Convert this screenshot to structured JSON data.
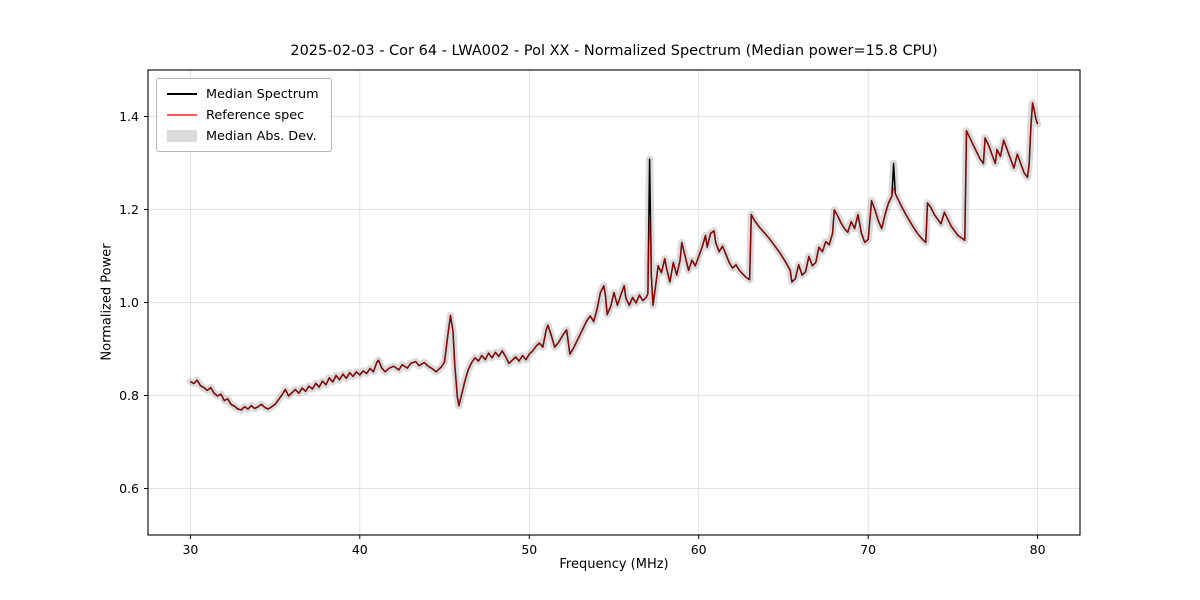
{
  "chart_data": {
    "type": "line",
    "title": "2025-02-03 - Cor 64 - LWA002 - Pol XX - Normalized Spectrum (Median power=15.8 CPU)",
    "xlabel": "Frequency (MHz)",
    "ylabel": "Normalized Power",
    "xlim": [
      27.5,
      82.5
    ],
    "ylim": [
      0.5,
      1.5
    ],
    "xticks": [
      30,
      40,
      50,
      60,
      70,
      80
    ],
    "yticks": [
      0.6,
      0.8,
      1.0,
      1.2,
      1.4
    ],
    "grid": true,
    "grid_color": "#dcdcdc",
    "legend": {
      "position": "upper left",
      "items": [
        {
          "label": "Median Spectrum",
          "swatch": "line",
          "color": "#000000",
          "opacity": 1
        },
        {
          "label": "Reference spec",
          "swatch": "line-thin",
          "color": "#ff0000",
          "opacity": 0.65
        },
        {
          "label": "Median Abs. Dev.",
          "swatch": "patch",
          "color": "#999999",
          "opacity": 0.35
        }
      ]
    },
    "series": [
      {
        "name": "Median Spectrum",
        "color": "#000000",
        "linewidth": 1.5,
        "points": [
          [
            30.0,
            0.83
          ],
          [
            30.2,
            0.826
          ],
          [
            30.4,
            0.833
          ],
          [
            30.6,
            0.821
          ],
          [
            30.8,
            0.817
          ],
          [
            31.0,
            0.811
          ],
          [
            31.2,
            0.817
          ],
          [
            31.4,
            0.805
          ],
          [
            31.6,
            0.799
          ],
          [
            31.8,
            0.803
          ],
          [
            32.0,
            0.789
          ],
          [
            32.2,
            0.793
          ],
          [
            32.4,
            0.781
          ],
          [
            32.6,
            0.777
          ],
          [
            32.8,
            0.771
          ],
          [
            33.0,
            0.769
          ],
          [
            33.2,
            0.776
          ],
          [
            33.4,
            0.771
          ],
          [
            33.6,
            0.778
          ],
          [
            33.8,
            0.772
          ],
          [
            34.0,
            0.776
          ],
          [
            34.2,
            0.781
          ],
          [
            34.4,
            0.774
          ],
          [
            34.6,
            0.771
          ],
          [
            34.8,
            0.776
          ],
          [
            35.0,
            0.781
          ],
          [
            35.2,
            0.791
          ],
          [
            35.4,
            0.801
          ],
          [
            35.6,
            0.813
          ],
          [
            35.8,
            0.799
          ],
          [
            36.0,
            0.806
          ],
          [
            36.2,
            0.813
          ],
          [
            36.4,
            0.805
          ],
          [
            36.6,
            0.816
          ],
          [
            36.8,
            0.809
          ],
          [
            37.0,
            0.82
          ],
          [
            37.2,
            0.814
          ],
          [
            37.4,
            0.826
          ],
          [
            37.6,
            0.818
          ],
          [
            37.8,
            0.831
          ],
          [
            38.0,
            0.823
          ],
          [
            38.2,
            0.838
          ],
          [
            38.4,
            0.829
          ],
          [
            38.6,
            0.843
          ],
          [
            38.8,
            0.834
          ],
          [
            39.0,
            0.846
          ],
          [
            39.2,
            0.837
          ],
          [
            39.4,
            0.849
          ],
          [
            39.6,
            0.841
          ],
          [
            39.8,
            0.851
          ],
          [
            40.0,
            0.844
          ],
          [
            40.2,
            0.853
          ],
          [
            40.4,
            0.847
          ],
          [
            40.6,
            0.858
          ],
          [
            40.8,
            0.851
          ],
          [
            41.0,
            0.871
          ],
          [
            41.1,
            0.876
          ],
          [
            41.3,
            0.859
          ],
          [
            41.5,
            0.851
          ],
          [
            41.7,
            0.858
          ],
          [
            42.0,
            0.863
          ],
          [
            42.3,
            0.855
          ],
          [
            42.5,
            0.866
          ],
          [
            42.8,
            0.859
          ],
          [
            43.0,
            0.869
          ],
          [
            43.3,
            0.873
          ],
          [
            43.5,
            0.864
          ],
          [
            43.8,
            0.871
          ],
          [
            44.0,
            0.864
          ],
          [
            44.3,
            0.857
          ],
          [
            44.5,
            0.851
          ],
          [
            44.8,
            0.861
          ],
          [
            45.0,
            0.872
          ],
          [
            45.2,
            0.931
          ],
          [
            45.35,
            0.972
          ],
          [
            45.5,
            0.938
          ],
          [
            45.6,
            0.868
          ],
          [
            45.75,
            0.798
          ],
          [
            45.85,
            0.778
          ],
          [
            46.0,
            0.801
          ],
          [
            46.2,
            0.831
          ],
          [
            46.4,
            0.856
          ],
          [
            46.6,
            0.871
          ],
          [
            46.8,
            0.881
          ],
          [
            47.0,
            0.874
          ],
          [
            47.2,
            0.886
          ],
          [
            47.4,
            0.877
          ],
          [
            47.6,
            0.891
          ],
          [
            47.8,
            0.881
          ],
          [
            48.0,
            0.893
          ],
          [
            48.2,
            0.884
          ],
          [
            48.4,
            0.896
          ],
          [
            48.6,
            0.884
          ],
          [
            48.8,
            0.869
          ],
          [
            49.0,
            0.876
          ],
          [
            49.2,
            0.883
          ],
          [
            49.4,
            0.874
          ],
          [
            49.6,
            0.886
          ],
          [
            49.8,
            0.877
          ],
          [
            50.0,
            0.889
          ],
          [
            50.2,
            0.896
          ],
          [
            50.4,
            0.906
          ],
          [
            50.6,
            0.913
          ],
          [
            50.8,
            0.904
          ],
          [
            51.0,
            0.941
          ],
          [
            51.1,
            0.951
          ],
          [
            51.3,
            0.929
          ],
          [
            51.5,
            0.904
          ],
          [
            51.7,
            0.913
          ],
          [
            52.0,
            0.931
          ],
          [
            52.2,
            0.941
          ],
          [
            52.4,
            0.889
          ],
          [
            52.6,
            0.901
          ],
          [
            52.8,
            0.916
          ],
          [
            53.0,
            0.931
          ],
          [
            53.2,
            0.946
          ],
          [
            53.4,
            0.961
          ],
          [
            53.6,
            0.971
          ],
          [
            53.8,
            0.959
          ],
          [
            54.0,
            0.986
          ],
          [
            54.2,
            1.021
          ],
          [
            54.4,
            1.036
          ],
          [
            54.5,
            1.014
          ],
          [
            54.6,
            0.974
          ],
          [
            54.8,
            0.991
          ],
          [
            55.0,
            1.021
          ],
          [
            55.2,
            0.994
          ],
          [
            55.4,
            1.016
          ],
          [
            55.6,
            1.036
          ],
          [
            55.7,
            1.009
          ],
          [
            55.9,
            0.994
          ],
          [
            56.1,
            1.011
          ],
          [
            56.3,
            0.999
          ],
          [
            56.5,
            1.016
          ],
          [
            56.7,
            1.004
          ],
          [
            56.9,
            1.011
          ],
          [
            57.0,
            1.019
          ],
          [
            57.1,
            1.308
          ],
          [
            57.2,
            1.058
          ],
          [
            57.3,
            0.994
          ],
          [
            57.5,
            1.049
          ],
          [
            57.6,
            1.079
          ],
          [
            57.8,
            1.064
          ],
          [
            58.0,
            1.094
          ],
          [
            58.1,
            1.074
          ],
          [
            58.3,
            1.044
          ],
          [
            58.5,
            1.086
          ],
          [
            58.7,
            1.059
          ],
          [
            58.9,
            1.091
          ],
          [
            59.0,
            1.129
          ],
          [
            59.2,
            1.099
          ],
          [
            59.4,
            1.069
          ],
          [
            59.6,
            1.091
          ],
          [
            59.8,
            1.079
          ],
          [
            60.0,
            1.099
          ],
          [
            60.2,
            1.119
          ],
          [
            60.4,
            1.144
          ],
          [
            60.5,
            1.119
          ],
          [
            60.7,
            1.149
          ],
          [
            60.9,
            1.154
          ],
          [
            61.0,
            1.129
          ],
          [
            61.2,
            1.109
          ],
          [
            61.4,
            1.121
          ],
          [
            61.6,
            1.104
          ],
          [
            61.8,
            1.086
          ],
          [
            62.0,
            1.074
          ],
          [
            62.2,
            1.081
          ],
          [
            62.4,
            1.069
          ],
          [
            62.6,
            1.061
          ],
          [
            62.8,
            1.054
          ],
          [
            63.0,
            1.049
          ],
          [
            63.1,
            1.189
          ],
          [
            63.3,
            1.176
          ],
          [
            63.6,
            1.161
          ],
          [
            63.9,
            1.149
          ],
          [
            64.2,
            1.136
          ],
          [
            64.5,
            1.121
          ],
          [
            64.8,
            1.106
          ],
          [
            65.1,
            1.089
          ],
          [
            65.4,
            1.069
          ],
          [
            65.5,
            1.044
          ],
          [
            65.7,
            1.051
          ],
          [
            65.9,
            1.081
          ],
          [
            66.1,
            1.059
          ],
          [
            66.3,
            1.066
          ],
          [
            66.5,
            1.099
          ],
          [
            66.7,
            1.079
          ],
          [
            66.9,
            1.086
          ],
          [
            67.1,
            1.119
          ],
          [
            67.3,
            1.109
          ],
          [
            67.5,
            1.131
          ],
          [
            67.7,
            1.124
          ],
          [
            67.9,
            1.149
          ],
          [
            68.0,
            1.199
          ],
          [
            68.2,
            1.186
          ],
          [
            68.4,
            1.171
          ],
          [
            68.6,
            1.159
          ],
          [
            68.8,
            1.151
          ],
          [
            69.0,
            1.174
          ],
          [
            69.2,
            1.159
          ],
          [
            69.4,
            1.189
          ],
          [
            69.6,
            1.149
          ],
          [
            69.8,
            1.129
          ],
          [
            70.0,
            1.136
          ],
          [
            70.2,
            1.219
          ],
          [
            70.4,
            1.199
          ],
          [
            70.6,
            1.176
          ],
          [
            70.8,
            1.159
          ],
          [
            71.0,
            1.189
          ],
          [
            71.2,
            1.214
          ],
          [
            71.4,
            1.229
          ],
          [
            71.5,
            1.299
          ],
          [
            71.6,
            1.234
          ],
          [
            71.8,
            1.219
          ],
          [
            72.0,
            1.204
          ],
          [
            72.3,
            1.184
          ],
          [
            72.6,
            1.166
          ],
          [
            72.9,
            1.149
          ],
          [
            73.2,
            1.136
          ],
          [
            73.4,
            1.129
          ],
          [
            73.5,
            1.214
          ],
          [
            73.7,
            1.204
          ],
          [
            73.9,
            1.189
          ],
          [
            74.1,
            1.179
          ],
          [
            74.3,
            1.169
          ],
          [
            74.5,
            1.194
          ],
          [
            74.7,
            1.179
          ],
          [
            74.9,
            1.164
          ],
          [
            75.1,
            1.154
          ],
          [
            75.3,
            1.144
          ],
          [
            75.5,
            1.139
          ],
          [
            75.7,
            1.134
          ],
          [
            75.8,
            1.369
          ],
          [
            76.0,
            1.354
          ],
          [
            76.2,
            1.339
          ],
          [
            76.4,
            1.324
          ],
          [
            76.6,
            1.309
          ],
          [
            76.8,
            1.299
          ],
          [
            76.9,
            1.354
          ],
          [
            77.1,
            1.339
          ],
          [
            77.3,
            1.319
          ],
          [
            77.5,
            1.299
          ],
          [
            77.6,
            1.329
          ],
          [
            77.8,
            1.314
          ],
          [
            78.0,
            1.349
          ],
          [
            78.2,
            1.329
          ],
          [
            78.4,
            1.309
          ],
          [
            78.6,
            1.289
          ],
          [
            78.8,
            1.319
          ],
          [
            79.0,
            1.299
          ],
          [
            79.2,
            1.279
          ],
          [
            79.4,
            1.269
          ],
          [
            79.5,
            1.299
          ],
          [
            79.6,
            1.379
          ],
          [
            79.7,
            1.429
          ],
          [
            79.8,
            1.414
          ],
          [
            79.9,
            1.394
          ],
          [
            80.0,
            1.384
          ]
        ]
      },
      {
        "name": "Reference spec",
        "color": "#ff0000",
        "opacity": 0.65,
        "linewidth": 1.1,
        "follows_median": true,
        "overrides": [
          {
            "x": 57.1,
            "y": 1.188
          },
          {
            "x": 71.5,
            "y": 1.246
          }
        ]
      },
      {
        "name": "Median Abs. Dev.",
        "color": "#999999",
        "opacity": 0.35,
        "band_halfwidth": 0.008
      }
    ]
  }
}
